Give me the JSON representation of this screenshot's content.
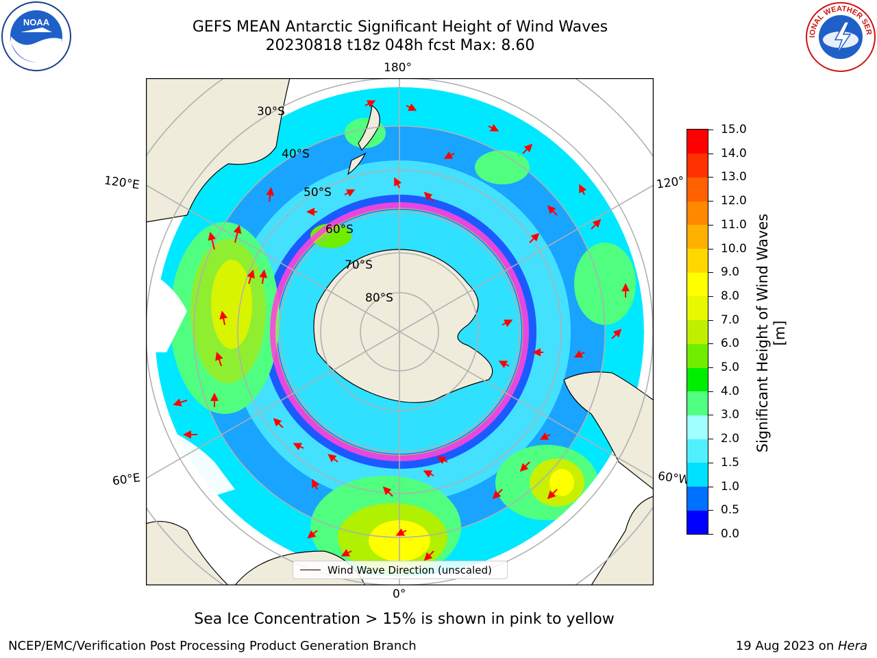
{
  "title": {
    "line1": "GEFS MEAN Antarctic Significant Height of Wind Waves",
    "line2": "20230818 t18z 048h fcst   Max: 8.60"
  },
  "logos": {
    "left": {
      "icon": "noaa-logo",
      "text": "NOAA"
    },
    "right": {
      "icon": "nws-logo",
      "text": "NATIONAL WEATHER SERVICE"
    }
  },
  "map": {
    "projection": "south-polar-stereographic",
    "longitude_labels": {
      "top": "180°",
      "bottom": "0°",
      "upper_left": "120°E",
      "upper_right": "120°",
      "lower_left": "60°E",
      "lower_right": "60°W"
    },
    "latitude_labels": [
      "30°S",
      "40°S",
      "50°S",
      "60°S",
      "70°S",
      "80°S"
    ],
    "legend": "Wind Wave Direction (unscaled)",
    "colors": {
      "land": "#efecdc",
      "ice": "#ffffff",
      "sea_ice_edge": "#ff44dd",
      "arrows": "#ff0000",
      "grid": "#b0b0b0"
    }
  },
  "colorbar": {
    "label": "Significant Height of Wind Waves [m]",
    "ticks": [
      "0.0",
      "0.5",
      "1.0",
      "1.5",
      "2.0",
      "3.0",
      "4.0",
      "5.0",
      "6.0",
      "7.0",
      "8.0",
      "9.0",
      "10.0",
      "11.0",
      "12.0",
      "13.0",
      "14.0",
      "15.0"
    ],
    "colors": [
      "#0000ff",
      "#0070ff",
      "#00e0ff",
      "#50f0ff",
      "#a0ffff",
      "#50ff80",
      "#00ee00",
      "#70ee00",
      "#c0f000",
      "#e8f800",
      "#ffff00",
      "#ffd800",
      "#ffb000",
      "#ff8800",
      "#ff6000",
      "#ff3000",
      "#ff0000"
    ]
  },
  "bottom_note": "Sea Ice Concentration > 15% is shown in pink to yellow",
  "footer": {
    "left": "NCEP/EMC/Verification Post Processing Product Generation Branch",
    "right_prefix": "19 Aug 2023 on ",
    "right_host": "Hera"
  }
}
